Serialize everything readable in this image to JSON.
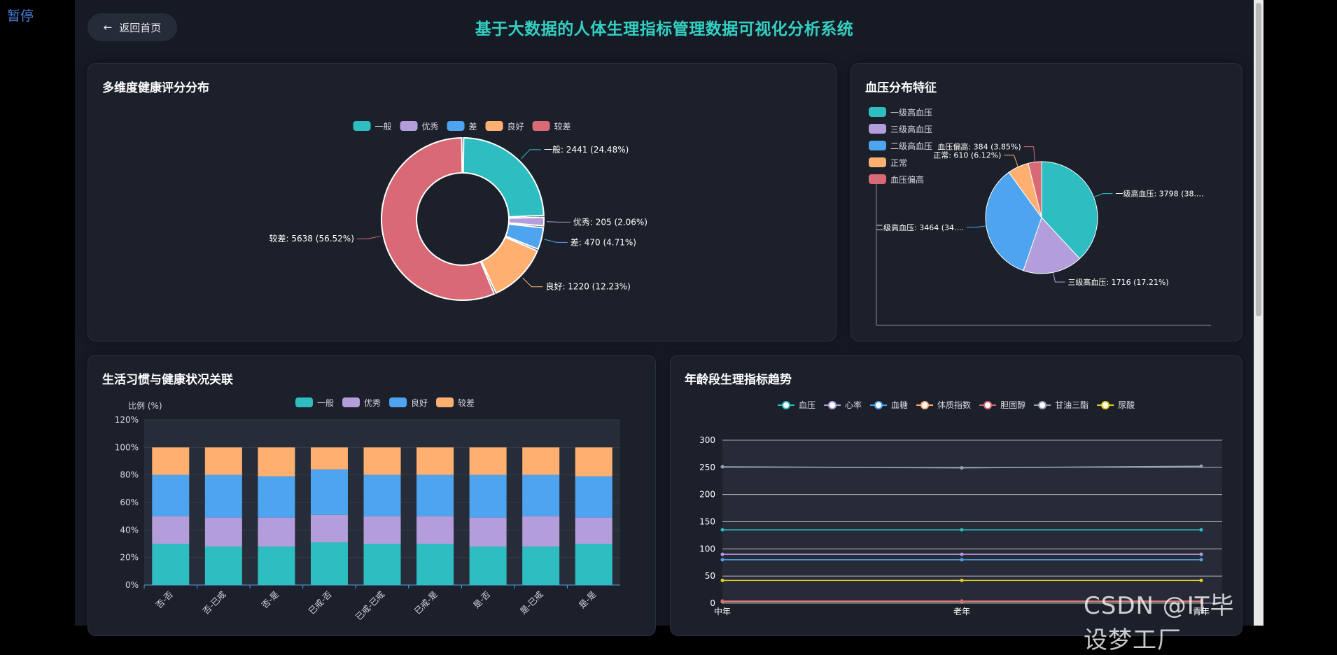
{
  "status_text": "暂停",
  "back_button": {
    "label": "返回首页"
  },
  "app_title": "基于大数据的人体生理指标管理数据可视化分析系统",
  "watermark": "CSDN @IT毕设梦工厂",
  "colors": {
    "teal": "#2ebec2",
    "purple": "#b39ddb",
    "blue": "#4fa4ef",
    "orange": "#ffb070",
    "red": "#d96a75",
    "yellow": "#e4d020",
    "gray": "#9aa0ae"
  },
  "cards": {
    "health_score": {
      "title": "多维度健康评分分布"
    },
    "blood_pressure": {
      "title": "血压分布特征"
    },
    "lifestyle": {
      "title": "生活习惯与健康状况关联"
    },
    "age_trend": {
      "title": "年龄段生理指标趋势"
    }
  },
  "chart_data": [
    {
      "id": "health_score",
      "type": "pie",
      "variant": "donut",
      "legend": [
        "一般",
        "优秀",
        "差",
        "良好",
        "较差"
      ],
      "legend_position": "top-center",
      "slices": [
        {
          "name": "一般",
          "value": 2441,
          "label": "一般: 2441 (24.48%)",
          "color": "#2ebec2"
        },
        {
          "name": "优秀",
          "value": 205,
          "label": "优秀: 205 (2.06%)",
          "color": "#b39ddb"
        },
        {
          "name": "差",
          "value": 470,
          "label": "差: 470 (4.71%)",
          "color": "#4fa4ef"
        },
        {
          "name": "良好",
          "value": 1220,
          "label": "良好: 1220 (12.23%)",
          "color": "#ffb070"
        },
        {
          "name": "较差",
          "value": 5638,
          "label": "较差: 5638 (56.52%)",
          "color": "#d96a75"
        }
      ]
    },
    {
      "id": "blood_pressure",
      "type": "pie",
      "legend": [
        "一级高血压",
        "三级高血压",
        "二级高血压",
        "正常",
        "血压偏高"
      ],
      "legend_position": "top-left",
      "slices": [
        {
          "name": "一级高血压",
          "value": 3798,
          "label": "一级高血压: 3798 (38....",
          "color": "#2ebec2"
        },
        {
          "name": "三级高血压",
          "value": 1716,
          "label": "三级高血压: 1716 (17.21%)",
          "color": "#b39ddb"
        },
        {
          "name": "二级高血压",
          "value": 3464,
          "label": "二级高血压: 3464 (34....",
          "color": "#4fa4ef"
        },
        {
          "name": "正常",
          "value": 610,
          "label": "正常: 610 (6.12%)",
          "color": "#ffb070"
        },
        {
          "name": "血压偏高",
          "value": 384,
          "label": "血压偏高: 384 (3.85%)",
          "color": "#d96a75"
        }
      ]
    },
    {
      "id": "lifestyle",
      "type": "bar",
      "stacked": true,
      "ylabel": "比例 (%)",
      "ylim": [
        0,
        120
      ],
      "yticks": [
        "0%",
        "20%",
        "40%",
        "60%",
        "80%",
        "100%",
        "120%"
      ],
      "categories": [
        "否-否",
        "否-已戒",
        "否-是",
        "已戒-否",
        "已戒-已戒",
        "已戒-是",
        "是-否",
        "是-已戒",
        "是-是"
      ],
      "legend_position": "top-center",
      "series": [
        {
          "name": "一般",
          "color": "#2ebec2",
          "values": [
            30,
            28,
            28,
            31,
            30,
            30,
            28,
            28,
            30
          ]
        },
        {
          "name": "优秀",
          "color": "#b39ddb",
          "values": [
            20,
            21,
            21,
            20,
            20,
            20,
            21,
            22,
            19
          ]
        },
        {
          "name": "良好",
          "color": "#4fa4ef",
          "values": [
            30,
            31,
            30,
            33,
            30,
            30,
            31,
            30,
            30
          ]
        },
        {
          "name": "较差",
          "color": "#ffb070",
          "values": [
            20,
            20,
            21,
            16,
            20,
            20,
            20,
            20,
            21
          ]
        }
      ]
    },
    {
      "id": "age_trend",
      "type": "line",
      "ylim": [
        0,
        300
      ],
      "yticks": [
        "0",
        "50",
        "100",
        "150",
        "200",
        "250",
        "300"
      ],
      "categories": [
        "中年",
        "老年",
        "青年"
      ],
      "legend_position": "top-center",
      "series": [
        {
          "name": "血压",
          "color": "#2ebec2",
          "values": [
            135,
            135,
            135
          ]
        },
        {
          "name": "心率",
          "color": "#b39ddb",
          "values": [
            90,
            90,
            90
          ]
        },
        {
          "name": "血糖",
          "color": "#4fa4ef",
          "values": [
            80,
            80,
            80
          ]
        },
        {
          "name": "体质指数",
          "color": "#ffb070",
          "values": [
            3,
            3,
            3
          ]
        },
        {
          "name": "胆固醇",
          "color": "#d96a75",
          "values": [
            4,
            4,
            4
          ]
        },
        {
          "name": "甘油三酯",
          "color": "#9aa0ae",
          "values": [
            251,
            249,
            252
          ]
        },
        {
          "name": "尿酸",
          "color": "#e4d020",
          "values": [
            42,
            42,
            42
          ]
        }
      ]
    }
  ]
}
